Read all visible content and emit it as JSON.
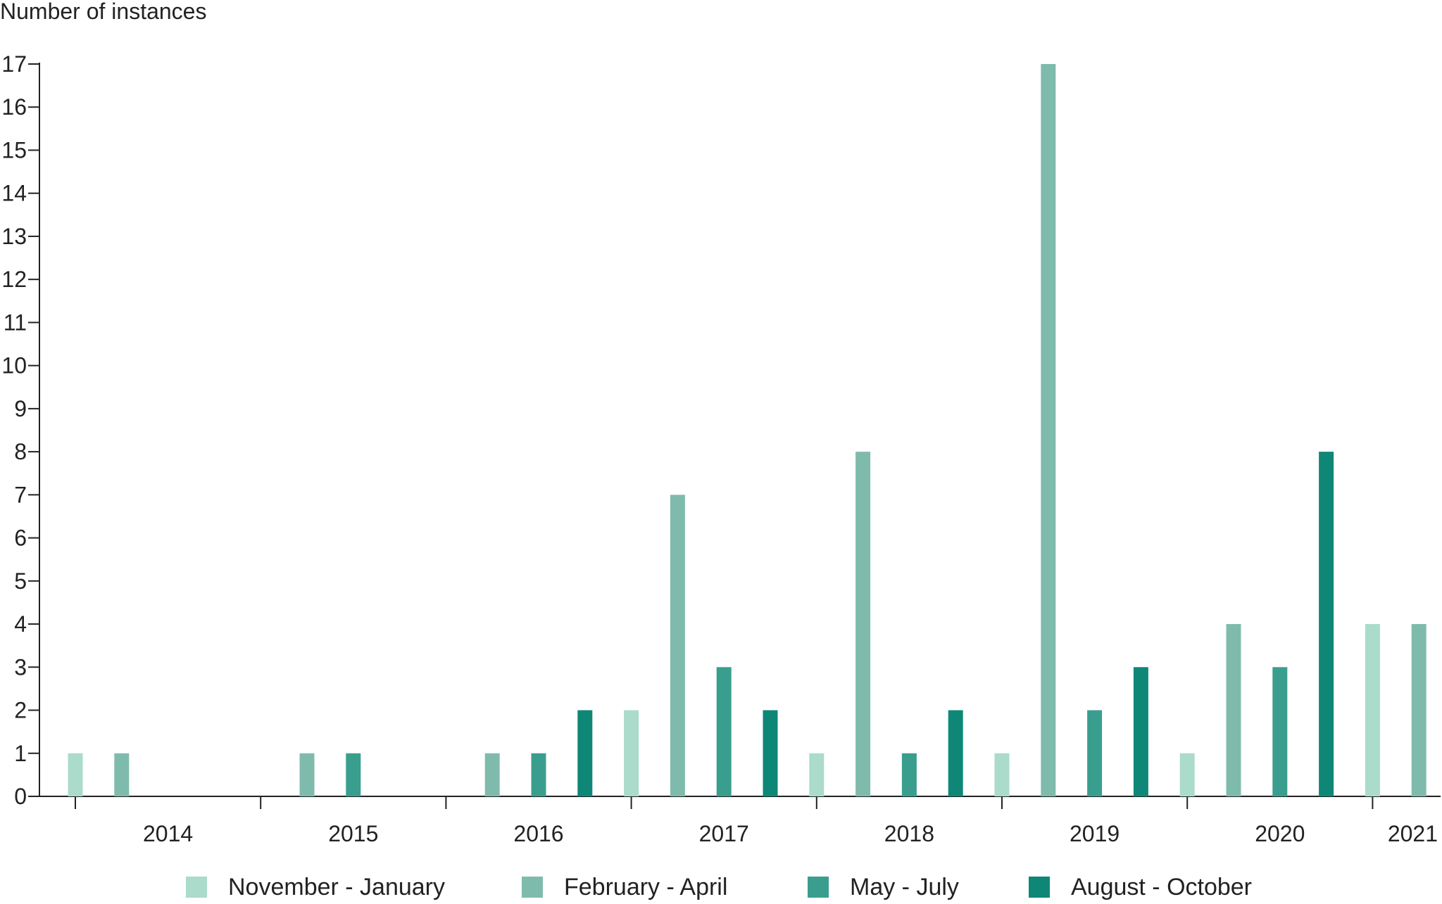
{
  "chart_data": {
    "type": "bar",
    "ylabel": "Number of instances",
    "xlabel": "",
    "ylim": [
      0,
      17
    ],
    "yticks": [
      0,
      1,
      2,
      3,
      4,
      5,
      6,
      7,
      8,
      9,
      10,
      11,
      12,
      13,
      14,
      15,
      16,
      17
    ],
    "grid": false,
    "legend_position": "bottom",
    "categories": [
      "2014",
      "2015",
      "2016",
      "2017",
      "2018",
      "2019",
      "2020",
      "2021"
    ],
    "series": [
      {
        "name": "November - January",
        "color": "#aadbcb",
        "values": [
          1,
          0,
          0,
          2,
          1,
          1,
          1,
          4
        ]
      },
      {
        "name": "February - April",
        "color": "#7fbbac",
        "values": [
          1,
          1,
          1,
          7,
          8,
          17,
          4,
          4
        ]
      },
      {
        "name": "May - July",
        "color": "#3a9e8f",
        "values": [
          0,
          1,
          1,
          3,
          1,
          2,
          3,
          null
        ]
      },
      {
        "name": "August - October",
        "color": "#0e8777",
        "values": [
          0,
          0,
          2,
          2,
          2,
          3,
          8,
          null
        ]
      }
    ]
  }
}
